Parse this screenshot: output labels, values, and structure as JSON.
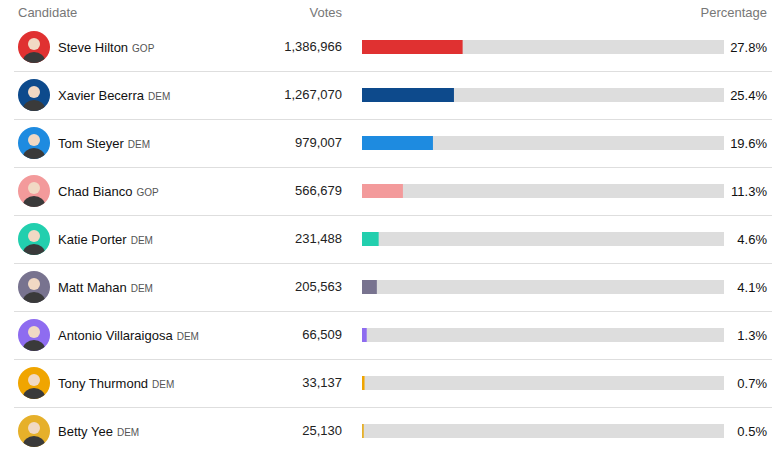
{
  "chart_data": {
    "type": "bar",
    "orientation": "horizontal",
    "column_headers": [
      "Candidate",
      "Votes",
      "Percentage"
    ],
    "categories": [
      "Steve Hilton",
      "Xavier Becerra",
      "Tom Steyer",
      "Chad Bianco",
      "Katie Porter",
      "Matt Mahan",
      "Antonio Villaraigosa",
      "Tony Thurmond",
      "Betty Yee"
    ],
    "party": [
      "GOP",
      "DEM",
      "DEM",
      "GOP",
      "DEM",
      "DEM",
      "DEM",
      "DEM",
      "DEM"
    ],
    "votes": [
      "1,386,966",
      "1,267,070",
      "979,007",
      "566,679",
      "231,488",
      "205,563",
      "66,509",
      "33,137",
      "25,130"
    ],
    "values": [
      27.8,
      25.4,
      19.6,
      11.3,
      4.6,
      4.1,
      1.3,
      0.7,
      0.5
    ],
    "value_labels": [
      "27.8%",
      "25.4%",
      "19.6%",
      "11.3%",
      "4.6%",
      "4.1%",
      "1.3%",
      "0.7%",
      "0.5%"
    ],
    "colors": [
      "#e03131",
      "#0d4a8c",
      "#1e8be0",
      "#f39a9b",
      "#22cfae",
      "#78738f",
      "#8e6cf0",
      "#f0a500",
      "#e6b02a"
    ],
    "xlim": [
      0,
      100
    ],
    "tick_labels": false,
    "data_labels": true,
    "grid": false
  }
}
